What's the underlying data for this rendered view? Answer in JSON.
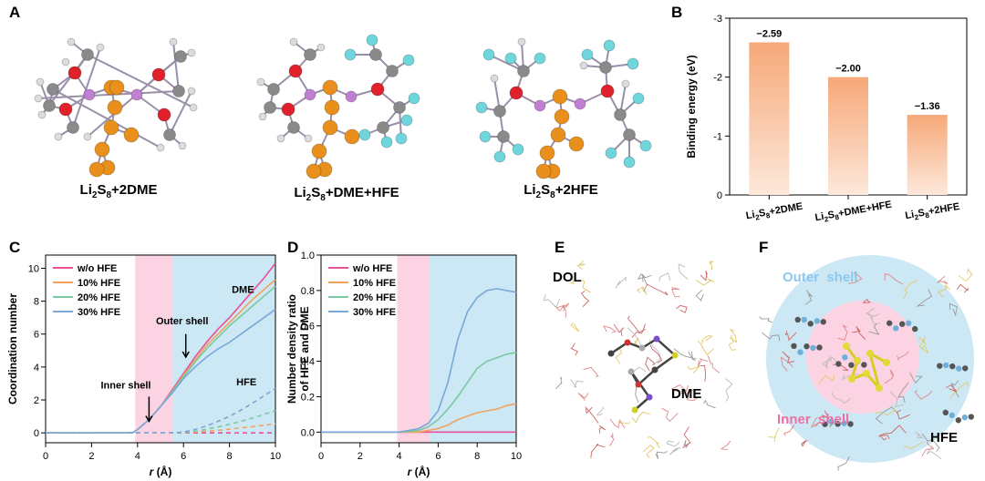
{
  "panels": {
    "a": "A",
    "b": "B",
    "c": "C",
    "d": "D",
    "e": "E",
    "f": "F"
  },
  "molecules": [
    {
      "base": "Li",
      "s1": "2",
      "mid": "S",
      "s2": "8",
      "suffix": "+2DME"
    },
    {
      "base": "Li",
      "s1": "2",
      "mid": "S",
      "s2": "8",
      "suffix": "+DME+HFE"
    },
    {
      "base": "Li",
      "s1": "2",
      "mid": "S",
      "s2": "8",
      "suffix": "+2HFE"
    }
  ],
  "colors": {
    "bar": "#f6a878",
    "inner_shell": "#fbd3e3",
    "outer_shell": "#cde8f5",
    "w/o HFE": "#e9509a",
    "10% HFE": "#f1a35c",
    "20% HFE": "#79c9a1",
    "30% HFE": "#78a7d8",
    "O": "#e0202a",
    "Li": "#c07fd0",
    "S": "#e8901b",
    "C": "#8a8a8a",
    "H": "#dcdcdc",
    "F": "#6fd6dd"
  },
  "chart_data": [
    {
      "id": "B",
      "type": "bar",
      "categories": [
        "Li2S8+2DME",
        "Li2S8+DME+HFE",
        "Li2S8+2HFE"
      ],
      "values": [
        -2.59,
        -2.0,
        -1.36
      ],
      "data_labels": [
        "−2.59",
        "−2.00",
        "−1.36"
      ],
      "ylabel": "Binding energy (eV)",
      "ylim": [
        0,
        -3
      ],
      "yticks": [
        "0",
        "-1",
        "-2",
        "-3"
      ]
    },
    {
      "id": "C",
      "type": "line",
      "xlabel_italic": "r",
      "xlabel_unit": " (Å)",
      "ylabel": "Coordination number",
      "xlim": [
        0,
        10
      ],
      "ylim": [
        -0.6,
        10.8
      ],
      "xticks": [
        "0",
        "2",
        "4",
        "6",
        "8",
        "10"
      ],
      "yticks": [
        "0",
        "2",
        "4",
        "6",
        "8",
        "10"
      ],
      "shaded": [
        {
          "from": 3.9,
          "to": 5.55,
          "region": "inner"
        },
        {
          "from": 5.55,
          "to": 10,
          "region": "outer"
        }
      ],
      "legend": [
        "w/o HFE",
        "10% HFE",
        "20% HFE",
        "30% HFE"
      ],
      "annotations": {
        "dme": "DME",
        "hfe": "HFE",
        "outer": "Outer shell",
        "inner": "Inner shell"
      },
      "x": [
        0,
        1,
        2,
        3,
        3.5,
        3.8,
        4,
        4.5,
        5,
        5.5,
        6,
        6.5,
        7,
        7.5,
        8,
        8.5,
        9,
        9.5,
        10
      ],
      "series": [
        {
          "name": "w/o HFE",
          "style": "solid",
          "values": [
            0,
            0,
            0,
            0,
            0,
            0.02,
            0.2,
            0.8,
            1.6,
            2.6,
            3.6,
            4.6,
            5.5,
            6.3,
            7.0,
            7.8,
            8.6,
            9.4,
            10.3
          ]
        },
        {
          "name": "10% HFE",
          "style": "solid",
          "values": [
            0,
            0,
            0,
            0,
            0,
            0.02,
            0.2,
            0.8,
            1.6,
            2.5,
            3.5,
            4.4,
            5.3,
            6.0,
            6.7,
            7.4,
            8.1,
            8.7,
            9.3
          ]
        },
        {
          "name": "20% HFE",
          "style": "solid",
          "values": [
            0,
            0,
            0,
            0,
            0,
            0.02,
            0.2,
            0.8,
            1.6,
            2.5,
            3.4,
            4.3,
            5.1,
            5.8,
            6.5,
            7.1,
            7.7,
            8.3,
            8.9
          ]
        },
        {
          "name": "30% HFE",
          "style": "solid",
          "values": [
            0,
            0,
            0,
            0,
            0,
            0.02,
            0.2,
            0.8,
            1.6,
            2.4,
            3.3,
            4.0,
            4.6,
            5.1,
            5.5,
            6.0,
            6.5,
            7.0,
            7.5
          ]
        },
        {
          "name": "w/o HFE",
          "style": "dash",
          "values": [
            0,
            0,
            0,
            0,
            0,
            0,
            0,
            0,
            0,
            0,
            0,
            0,
            0,
            0,
            0,
            0,
            0,
            0,
            0
          ]
        },
        {
          "name": "10% HFE",
          "style": "dash",
          "values": [
            0,
            0,
            0,
            0,
            0,
            0,
            0,
            0,
            0,
            0,
            0.02,
            0.05,
            0.1,
            0.15,
            0.22,
            0.3,
            0.38,
            0.46,
            0.55
          ]
        },
        {
          "name": "20% HFE",
          "style": "dash",
          "values": [
            0,
            0,
            0,
            0,
            0,
            0,
            0,
            0,
            0,
            0,
            0.03,
            0.1,
            0.22,
            0.36,
            0.52,
            0.7,
            0.9,
            1.12,
            1.35
          ]
        },
        {
          "name": "30% HFE",
          "style": "dash",
          "values": [
            0,
            0,
            0,
            0,
            0,
            0,
            0,
            0,
            0,
            0,
            0.05,
            0.2,
            0.42,
            0.7,
            1.0,
            1.38,
            1.8,
            2.25,
            2.7
          ]
        }
      ]
    },
    {
      "id": "D",
      "type": "line",
      "xlabel_italic": "r",
      "xlabel_unit": " (Å)",
      "ylabel_line1": "Number density ratio",
      "ylabel_line2": "of HFE and DME",
      "xlim": [
        0,
        10
      ],
      "ylim": [
        -0.06,
        1.0
      ],
      "xticks": [
        "0",
        "2",
        "4",
        "6",
        "8",
        "10"
      ],
      "yticks": [
        "0.0",
        "0.2",
        "0.4",
        "0.6",
        "0.8",
        "1.0"
      ],
      "shaded": [
        {
          "from": 3.9,
          "to": 5.55,
          "region": "inner"
        },
        {
          "from": 5.55,
          "to": 10,
          "region": "outer"
        }
      ],
      "legend": [
        "w/o HFE",
        "10% HFE",
        "20% HFE",
        "30% HFE"
      ],
      "x": [
        0,
        3,
        4,
        5,
        5.5,
        6,
        6.5,
        7,
        7.5,
        8,
        8.5,
        9,
        9.5,
        10
      ],
      "series": [
        {
          "name": "w/o HFE",
          "values": [
            0,
            0,
            0,
            0,
            0,
            0,
            0,
            0,
            0,
            0,
            0,
            0,
            0,
            0
          ]
        },
        {
          "name": "10% HFE",
          "values": [
            0,
            0,
            0,
            0,
            0.01,
            0.02,
            0.04,
            0.07,
            0.09,
            0.11,
            0.12,
            0.13,
            0.15,
            0.16
          ]
        },
        {
          "name": "20% HFE",
          "values": [
            0,
            0,
            0,
            0.01,
            0.03,
            0.07,
            0.13,
            0.2,
            0.28,
            0.36,
            0.4,
            0.42,
            0.44,
            0.45
          ]
        },
        {
          "name": "30% HFE",
          "values": [
            0,
            0,
            0,
            0.02,
            0.05,
            0.12,
            0.28,
            0.52,
            0.68,
            0.76,
            0.8,
            0.81,
            0.8,
            0.79
          ]
        }
      ]
    }
  ],
  "panel_e": {
    "dol": "DOL",
    "dme": "DME"
  },
  "panel_f": {
    "outer": "Outer  shell",
    "inner": "Inner  shell",
    "hfe": "HFE"
  }
}
